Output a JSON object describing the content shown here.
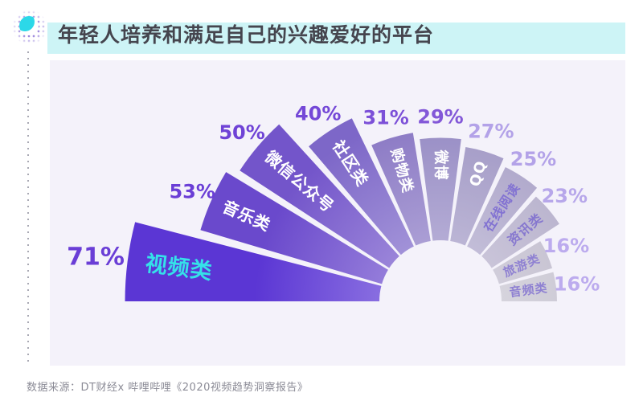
{
  "header": {
    "title": "年轻人培养和满足自己的兴趣爱好的平台"
  },
  "footer": {
    "source": "数据来源：DT财经x 哔哩哔哩《2020视频趋势洞察报告》"
  },
  "theme": {
    "title_color": "#45454e",
    "title_highlight": "#cdf4f6",
    "panel_bg": "#f4f2fa",
    "accent_cyan": "#2cd8e8",
    "source_color": "#8b8b96",
    "halo_dot_color": "#7d61d2"
  },
  "chart_data": {
    "type": "bar",
    "variant": "polar-fan-rose",
    "title": "年轻人培养和满足自己的兴趣爱好的平台",
    "categories": [
      "视频类",
      "音乐类",
      "微信公众号",
      "社区类",
      "购物类",
      "微博",
      "QQ",
      "在线阅读",
      "资讯类",
      "旅游类",
      "音频类"
    ],
    "values": [
      71,
      53,
      50,
      40,
      31,
      29,
      27,
      25,
      23,
      16,
      16
    ],
    "unit": "%",
    "value_range": [
      0,
      71
    ],
    "angle_span_deg": 180,
    "grid": false,
    "legend": "none",
    "colors": [
      "#5b36d4",
      "#6a49cc",
      "#7355ca",
      "#7d67c8",
      "#8a78c4",
      "#968bc4",
      "#a198c5",
      "#aba3c8",
      "#b4aeca",
      "#bfbacc",
      "#c6c3d0"
    ],
    "label_colors": [
      "#35e1e9",
      "#ffffff",
      "#ffffff",
      "#ffffff",
      "#ffffff",
      "#ffffff",
      "#ffffff",
      "#8272d2",
      "#8677cf",
      "#8f81d2",
      "#8f81d2"
    ],
    "pct_colors": [
      "#6a3ed6",
      "#6a3ed6",
      "#6f43d6",
      "#7448d7",
      "#7c50d8",
      "#8358d8",
      "#b3a2e8",
      "#b3a2e8",
      "#b7a7ea",
      "#bcabee",
      "#bcabee"
    ]
  }
}
